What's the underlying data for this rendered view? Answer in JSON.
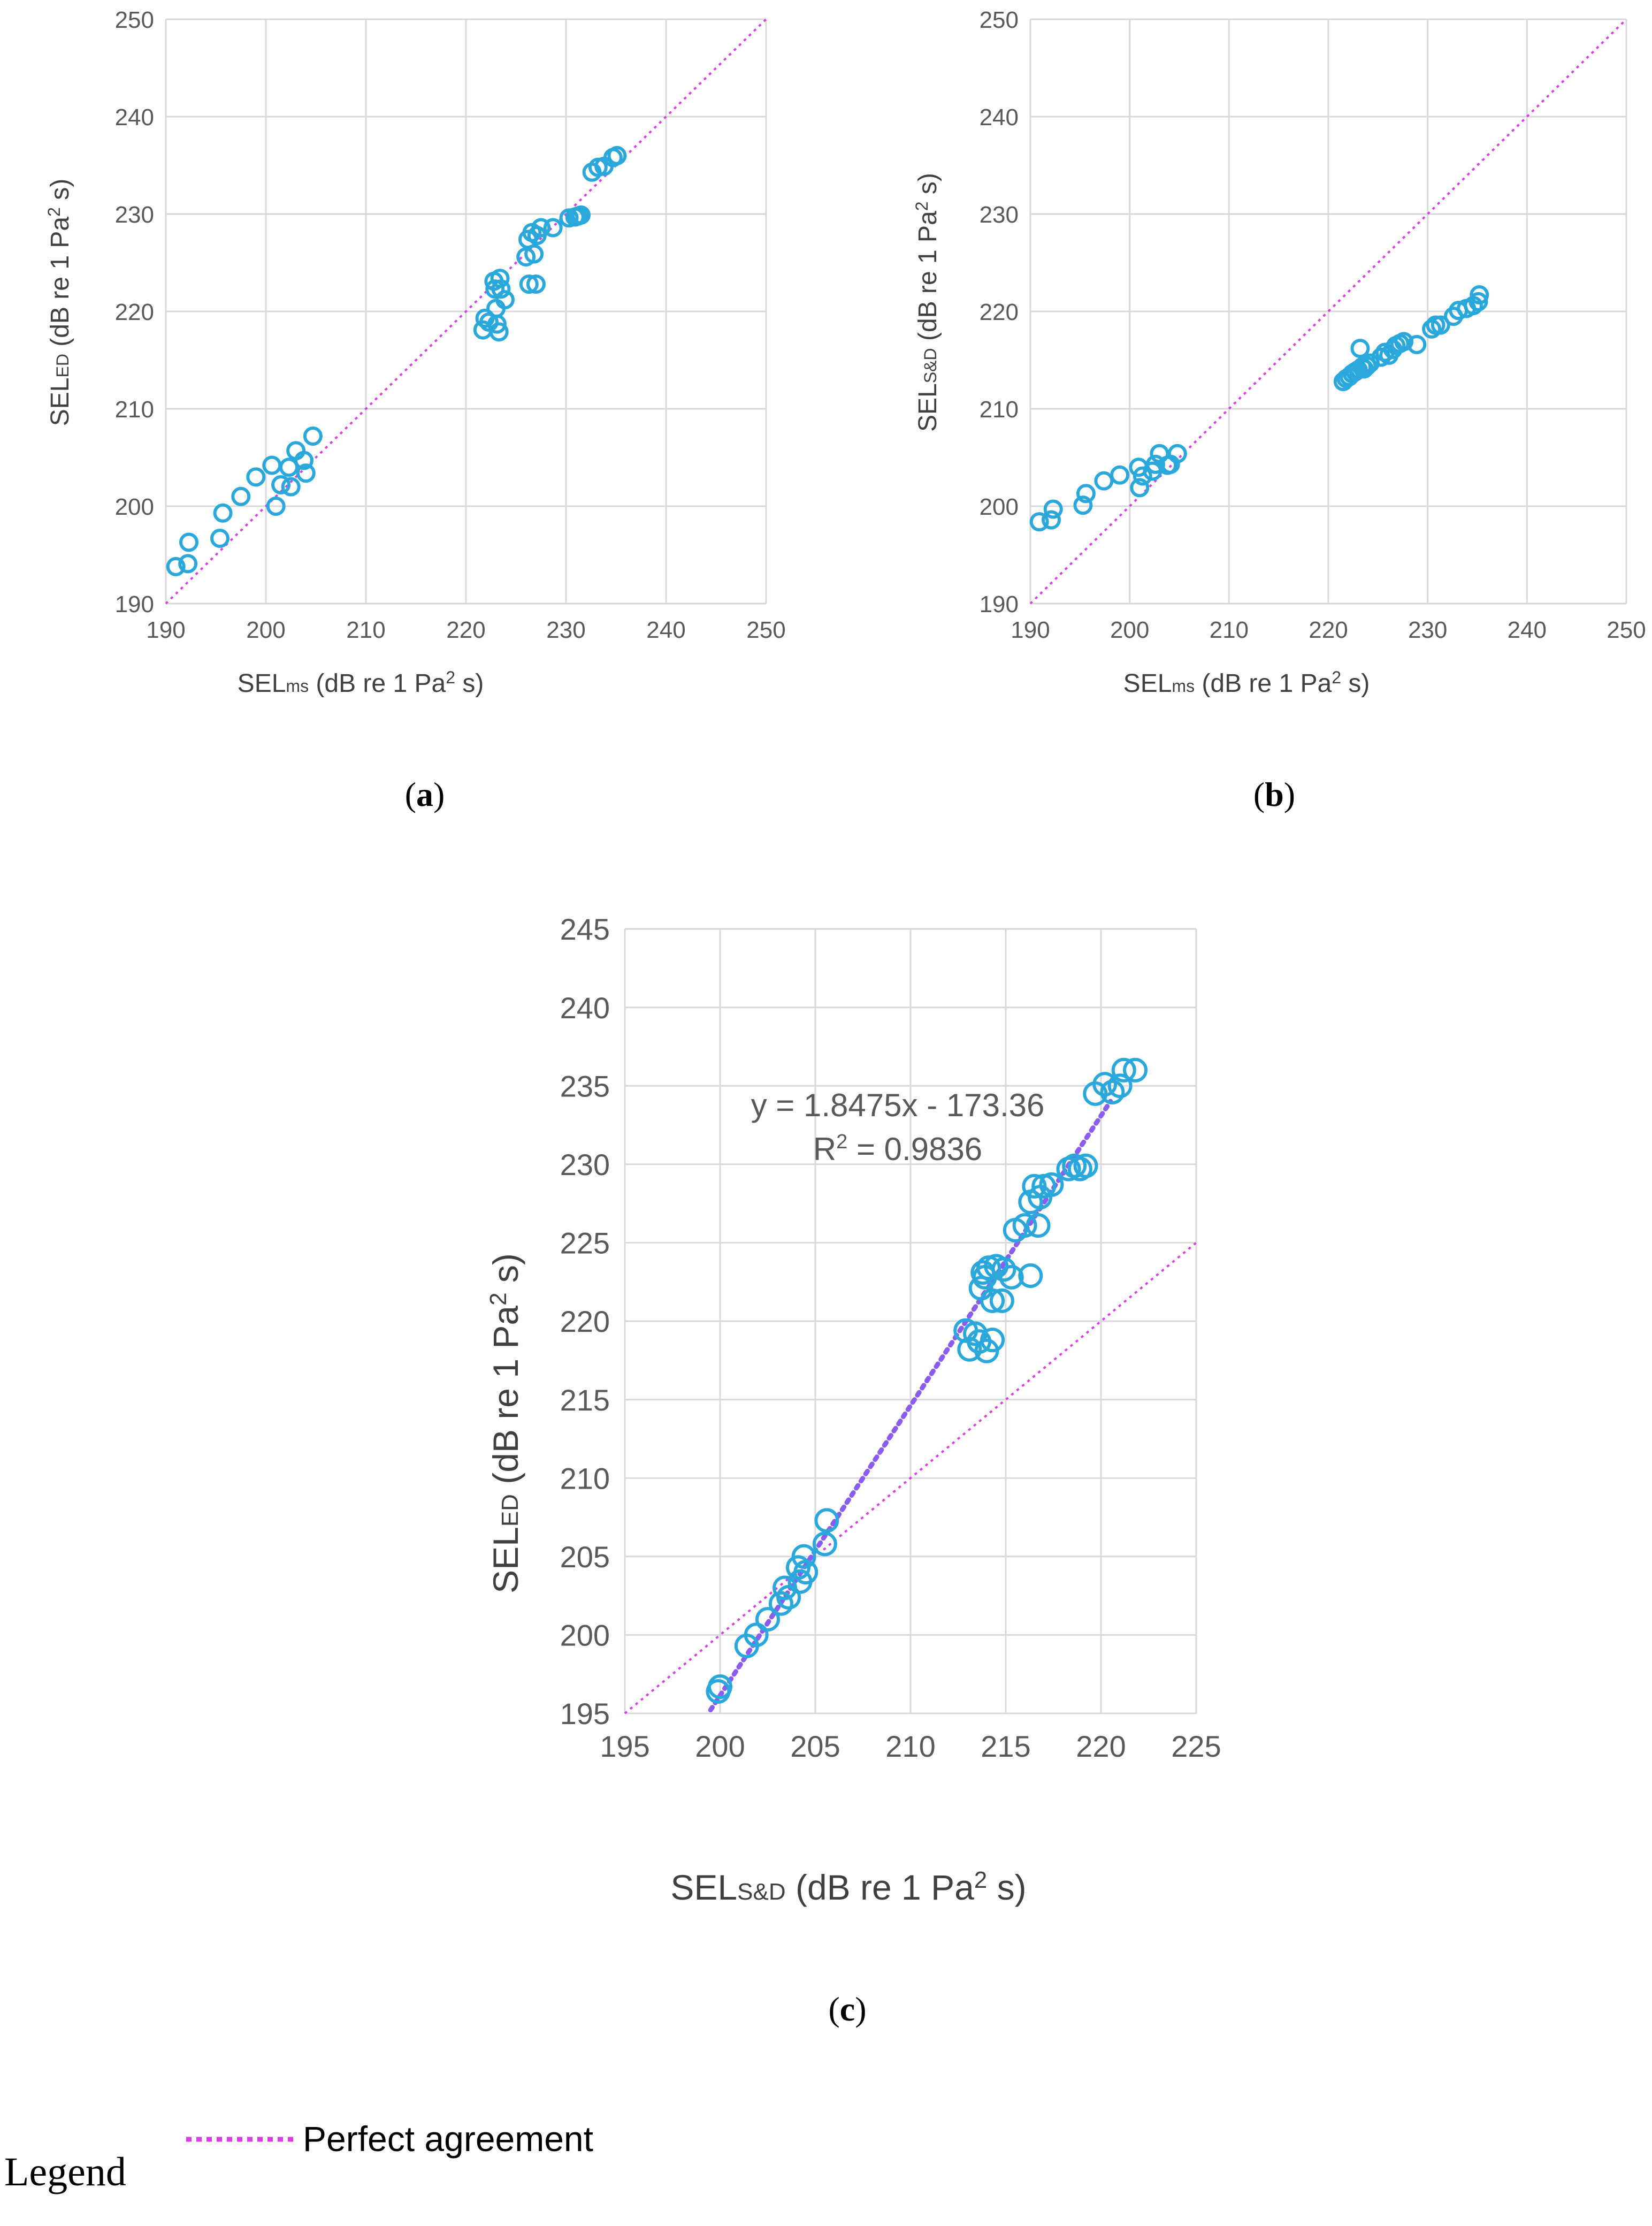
{
  "colors": {
    "points": "#2aa8dc",
    "reference": "#dc3ce6",
    "trendline": "#8a5cf0"
  },
  "chart_data": [
    {
      "id": "a",
      "type": "scatter",
      "panel_label": "a",
      "xlabel": {
        "base": "SEL",
        "sub": "ms",
        "rest": " (dB re 1 Pa",
        "sup": "2",
        "end": " s)"
      },
      "ylabel": {
        "base": "SEL",
        "sub": "ED",
        "rest": " (dB re 1 Pa",
        "sup": "2",
        "end": " s)"
      },
      "xlim": [
        190,
        250
      ],
      "ylim": [
        190,
        250
      ],
      "xticks": [
        190,
        200,
        210,
        220,
        230,
        240,
        250
      ],
      "yticks": [
        190,
        200,
        210,
        220,
        230,
        240,
        250
      ],
      "grid": true,
      "reference_line": {
        "name": "Perfect agreement",
        "from": [
          190,
          190
        ],
        "to": [
          250,
          250
        ]
      },
      "series": [
        {
          "name": "SEL_ED vs SEL_ms",
          "points": [
            [
              191,
              193.8
            ],
            [
              192.2,
              194.1
            ],
            [
              192.3,
              196.3
            ],
            [
              195.4,
              196.7
            ],
            [
              195.7,
              199.3
            ],
            [
              197.5,
              201
            ],
            [
              199,
              203
            ],
            [
              200.6,
              204.2
            ],
            [
              201,
              200
            ],
            [
              201.5,
              202.2
            ],
            [
              202.3,
              204
            ],
            [
              202.5,
              202
            ],
            [
              203,
              205.7
            ],
            [
              203.8,
              204.7
            ],
            [
              204,
              203.4
            ],
            [
              204.7,
              207.2
            ],
            [
              221.7,
              218.1
            ],
            [
              221.9,
              219.3
            ],
            [
              222.3,
              218.9
            ],
            [
              222.8,
              223.1
            ],
            [
              222.9,
              222.3
            ],
            [
              223,
              220.3
            ],
            [
              223.1,
              218.7
            ],
            [
              223.3,
              217.9
            ],
            [
              223.4,
              223.4
            ],
            [
              223.5,
              222.3
            ],
            [
              223.9,
              221.2
            ],
            [
              226,
              225.6
            ],
            [
              226.2,
              227.4
            ],
            [
              226.3,
              222.8
            ],
            [
              226.6,
              228.1
            ],
            [
              226.8,
              225.9
            ],
            [
              227,
              222.8
            ],
            [
              227.1,
              227.8
            ],
            [
              227.5,
              228.6
            ],
            [
              228.7,
              228.6
            ],
            [
              230.3,
              229.6
            ],
            [
              230.9,
              229.7
            ],
            [
              231.2,
              229.8
            ],
            [
              231.5,
              229.9
            ],
            [
              232.6,
              234.3
            ],
            [
              233.2,
              234.8
            ],
            [
              233.8,
              234.9
            ],
            [
              234.7,
              235.8
            ],
            [
              235.1,
              236
            ]
          ]
        }
      ]
    },
    {
      "id": "b",
      "type": "scatter",
      "panel_label": "b",
      "xlabel": {
        "base": "SEL",
        "sub": "ms",
        "rest": " (dB re 1 Pa",
        "sup": "2",
        "end": " s)"
      },
      "ylabel": {
        "base": "SEL",
        "sub": "S&D",
        "rest": " (dB re 1 Pa",
        "sup": "2",
        "end": " s)"
      },
      "xlim": [
        190,
        250
      ],
      "ylim": [
        190,
        250
      ],
      "xticks": [
        190,
        200,
        210,
        220,
        230,
        240,
        250
      ],
      "yticks": [
        190,
        200,
        210,
        220,
        230,
        240,
        250
      ],
      "grid": true,
      "reference_line": {
        "name": "Perfect agreement",
        "from": [
          190,
          190
        ],
        "to": [
          250,
          250
        ]
      },
      "series": [
        {
          "name": "SEL_S&D vs SEL_ms",
          "points": [
            [
              190.9,
              198.4
            ],
            [
              192.1,
              198.6
            ],
            [
              192.3,
              199.7
            ],
            [
              195.3,
              200.1
            ],
            [
              195.6,
              201.3
            ],
            [
              197.4,
              202.6
            ],
            [
              199,
              203.2
            ],
            [
              200.9,
              204
            ],
            [
              201,
              201.9
            ],
            [
              201.3,
              203.1
            ],
            [
              202.3,
              203.6
            ],
            [
              202.6,
              204.3
            ],
            [
              203,
              205.4
            ],
            [
              203.8,
              204.2
            ],
            [
              204.1,
              204.3
            ],
            [
              204.8,
              205.4
            ],
            [
              221.5,
              212.8
            ],
            [
              221.8,
              213.1
            ],
            [
              222.1,
              213.3
            ],
            [
              222.4,
              213.6
            ],
            [
              222.7,
              213.8
            ],
            [
              223,
              214
            ],
            [
              223.2,
              216.2
            ],
            [
              223.4,
              214.3
            ],
            [
              223.6,
              214.1
            ],
            [
              223.9,
              214.4
            ],
            [
              224.2,
              214.7
            ],
            [
              225.3,
              215.3
            ],
            [
              225.7,
              215.8
            ],
            [
              226.1,
              215.5
            ],
            [
              226.5,
              216.1
            ],
            [
              226.8,
              216.5
            ],
            [
              227.2,
              216.7
            ],
            [
              227.6,
              216.9
            ],
            [
              228.9,
              216.6
            ],
            [
              230.4,
              218.2
            ],
            [
              230.8,
              218.6
            ],
            [
              231.3,
              218.6
            ],
            [
              232.6,
              219.5
            ],
            [
              233.1,
              220.1
            ],
            [
              233.9,
              220.3
            ],
            [
              234.6,
              220.6
            ],
            [
              235.1,
              221
            ],
            [
              235.2,
              221.7
            ]
          ]
        }
      ]
    },
    {
      "id": "c",
      "type": "scatter",
      "panel_label": "c",
      "xlabel": {
        "base": "SEL",
        "sub": "S&D",
        "rest": " (dB re 1 Pa",
        "sup": "2",
        "end": " s)"
      },
      "ylabel": {
        "base": "SEL",
        "sub": "ED",
        "rest": " (dB re 1 Pa",
        "sup": "2",
        "end": " s)"
      },
      "xlim": [
        195,
        225
      ],
      "ylim": [
        195,
        245
      ],
      "xticks": [
        195,
        200,
        205,
        210,
        215,
        220,
        225
      ],
      "yticks": [
        195,
        200,
        205,
        210,
        215,
        220,
        225,
        230,
        235,
        240,
        245
      ],
      "grid": true,
      "reference_line": {
        "name": "Perfect agreement",
        "from": [
          195,
          195
        ],
        "to": [
          225,
          225
        ]
      },
      "trendline": {
        "slope": 1.8475,
        "intercept": -173.36,
        "x_range": [
          199.5,
          220.5
        ],
        "equation_label": "y = 1.8475x - 173.36",
        "r2_label": "R",
        "r2_sup": "2",
        "r2_value": " = 0.9836"
      },
      "series": [
        {
          "name": "SEL_ED vs SEL_S&D",
          "points": [
            [
              199.9,
              196.4
            ],
            [
              200,
              196.7
            ],
            [
              201.4,
              199.3
            ],
            [
              201.9,
              200
            ],
            [
              202.5,
              201
            ],
            [
              203.2,
              202
            ],
            [
              203.4,
              203
            ],
            [
              203.6,
              202.4
            ],
            [
              204.1,
              204.3
            ],
            [
              204.2,
              203.4
            ],
            [
              204.4,
              205
            ],
            [
              204.5,
              204
            ],
            [
              205.5,
              205.8
            ],
            [
              205.6,
              207.3
            ],
            [
              212.9,
              219.4
            ],
            [
              213.1,
              218.2
            ],
            [
              213.4,
              219.2
            ],
            [
              213.6,
              218.7
            ],
            [
              213.7,
              222.1
            ],
            [
              213.8,
              223.1
            ],
            [
              213.9,
              222.8
            ],
            [
              214,
              218.1
            ],
            [
              214.1,
              223.4
            ],
            [
              214.3,
              221.3
            ],
            [
              214.3,
              218.8
            ],
            [
              214.5,
              223.5
            ],
            [
              214.8,
              221.3
            ],
            [
              214.9,
              223.3
            ],
            [
              215.3,
              222.8
            ],
            [
              215.5,
              225.8
            ],
            [
              216,
              226.1
            ],
            [
              216.3,
              227.6
            ],
            [
              216.3,
              222.9
            ],
            [
              216.5,
              228.6
            ],
            [
              216.7,
              226.1
            ],
            [
              216.8,
              227.9
            ],
            [
              217,
              228.6
            ],
            [
              217.4,
              228.7
            ],
            [
              218.3,
              229.7
            ],
            [
              218.6,
              229.9
            ],
            [
              218.9,
              229.7
            ],
            [
              219.2,
              229.9
            ],
            [
              219.7,
              234.5
            ],
            [
              220.2,
              235.1
            ],
            [
              220.6,
              234.6
            ],
            [
              221,
              235
            ],
            [
              221.2,
              236
            ],
            [
              221.8,
              236
            ]
          ]
        }
      ]
    }
  ],
  "legend": {
    "word": "Legend",
    "entries": [
      {
        "name": "Perfect agreement",
        "style": "pink dotted"
      }
    ]
  }
}
